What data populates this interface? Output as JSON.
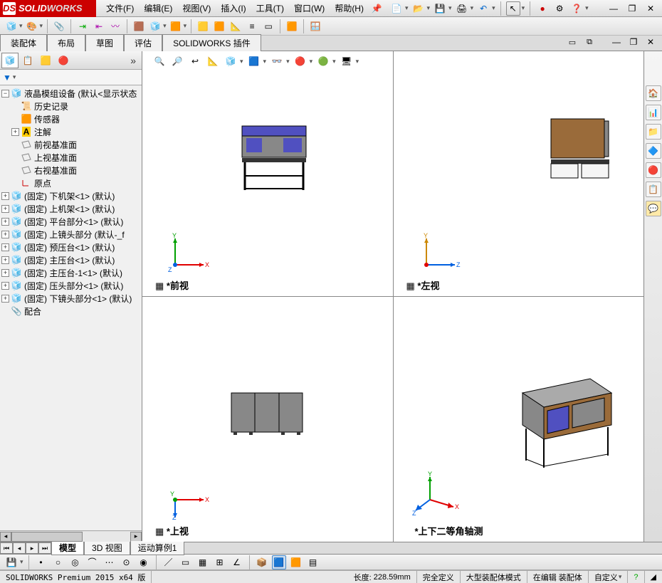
{
  "app_name_html": "SOLID<span style='color:#fff'>WORKS</span>",
  "menu": [
    "文件(F)",
    "编辑(E)",
    "视图(V)",
    "插入(I)",
    "工具(T)",
    "窗口(W)",
    "帮助(H)"
  ],
  "ribbon_tabs": [
    "装配体",
    "布局",
    "草图",
    "评估",
    "SOLIDWORKS 插件"
  ],
  "tree": {
    "root": "液晶模组设备  (默认<显示状态",
    "items": [
      {
        "icon": "history",
        "label": "历史记录",
        "indent": 1,
        "exp": null
      },
      {
        "icon": "sensor",
        "label": "传感器",
        "indent": 1,
        "exp": null
      },
      {
        "icon": "annot",
        "label": "注解",
        "indent": 1,
        "exp": "+"
      },
      {
        "icon": "plane",
        "label": "前视基准面",
        "indent": 1,
        "exp": null
      },
      {
        "icon": "plane",
        "label": "上视基准面",
        "indent": 1,
        "exp": null
      },
      {
        "icon": "plane",
        "label": "右视基准面",
        "indent": 1,
        "exp": null
      },
      {
        "icon": "origin",
        "label": "原点",
        "indent": 1,
        "exp": null
      },
      {
        "icon": "asm",
        "label": "(固定) 下机架<1> (默认)",
        "indent": 0,
        "exp": "+"
      },
      {
        "icon": "asm",
        "label": "(固定) 上机架<1> (默认)",
        "indent": 0,
        "exp": "+"
      },
      {
        "icon": "asm",
        "label": "(固定) 平台部分<1> (默认)",
        "indent": 0,
        "exp": "+"
      },
      {
        "icon": "asm",
        "label": "(固定) 上镜头部分 (默认-_f",
        "indent": 0,
        "exp": "+"
      },
      {
        "icon": "asm",
        "label": "(固定) 预压台<1> (默认)",
        "indent": 0,
        "exp": "+"
      },
      {
        "icon": "asm",
        "label": "(固定) 主压台<1> (默认)",
        "indent": 0,
        "exp": "+"
      },
      {
        "icon": "asm",
        "label": "(固定) 主压台-1<1> (默认)",
        "indent": 0,
        "exp": "+"
      },
      {
        "icon": "asm",
        "label": "(固定) 压头部分<1> (默认)",
        "indent": 0,
        "exp": "+"
      },
      {
        "icon": "asm",
        "label": "(固定) 下镜头部分<1> (默认)",
        "indent": 0,
        "exp": "+"
      },
      {
        "icon": "mates",
        "label": "配合",
        "indent": 0,
        "exp": null
      }
    ]
  },
  "views": {
    "front": "*前视",
    "left": "*左视",
    "top": "*上视",
    "iso": "*上下二等角轴测"
  },
  "bottom_tabs": [
    "模型",
    "3D 视图",
    "运动算例1"
  ],
  "status": {
    "product": "SOLIDWORKS Premium 2015 x64 版",
    "length_label": "长度:",
    "length_value": "228.59mm",
    "def": "完全定义",
    "mode": "大型装配体模式",
    "edit": "在编辑 装配体",
    "custom": "自定义"
  },
  "colors": {
    "machine_brown": "#9a6b3a",
    "machine_blue": "#5050c0",
    "machine_gray": "#808080",
    "frame": "#202020",
    "triad_x": "#e00000",
    "triad_y": "#00a000",
    "triad_z": "#0060e0"
  }
}
